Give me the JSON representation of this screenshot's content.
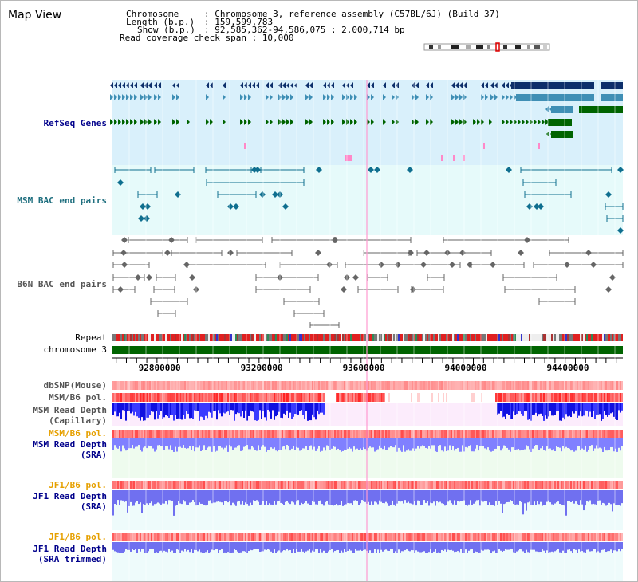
{
  "view_title": "Map View",
  "info": {
    "chromosome_key": "Chromosome",
    "chromosome_val": ": Chromosome 3, reference assembly (C57BL/6J) (Build 37)",
    "length_key": "Length (b.p.)",
    "length_val": ": 159,599,783",
    "show_key": "Show (b.p.)",
    "show_val": ": 92,585,362-94,586,075 : 2,000,714 bp",
    "coverage": "Read coverage check span : 10,000"
  },
  "tracks": {
    "refseq": "RefSeq Genes",
    "msm_bac": "MSM BAC end pairs",
    "b6n_bac": "B6N BAC end pairs",
    "repeat": "Repeat",
    "chromosome": "chromosome 3",
    "dbsnp": "dbSNP(Mouse)",
    "msm_b6_pol_1": "MSM/B6 pol.",
    "msm_depth_cap_1": "MSM Read Depth",
    "msm_depth_cap_2": "(Capillary)",
    "msm_b6_pol_2": "MSM/B6 pol.",
    "msm_depth_sra_1": "MSM Read Depth",
    "msm_depth_sra_2": "(SRA)",
    "jf1_pol_1": "JF1/B6 pol.",
    "jf1_depth_sra_1": "JF1 Read Depth",
    "jf1_depth_sra_2": "(SRA)",
    "jf1_pol_2": "JF1/B6 pol.",
    "jf1_depth_trim_1": "JF1 Read Depth",
    "jf1_depth_trim_2": "(SRA trimmed)"
  },
  "axis": {
    "ticks": [
      92800000,
      93200000,
      93600000,
      94000000,
      94400000
    ],
    "range": [
      92585362,
      94586075
    ]
  },
  "colors": {
    "refseq_dark": "#0d2f6b",
    "refseq_mid": "#3f8fb5",
    "refseq_green": "#006400",
    "refseq_bg": "#d9f0fb",
    "bac_bg": "#e6fafa",
    "msm_bac": "#0f6f8f",
    "b6n_bac": "#666666",
    "chromosome": "#006400",
    "label_blue": "#00008b",
    "label_teal": "#1f6f7f",
    "label_orange": "#e6a000",
    "label_gray": "#555555"
  }
}
